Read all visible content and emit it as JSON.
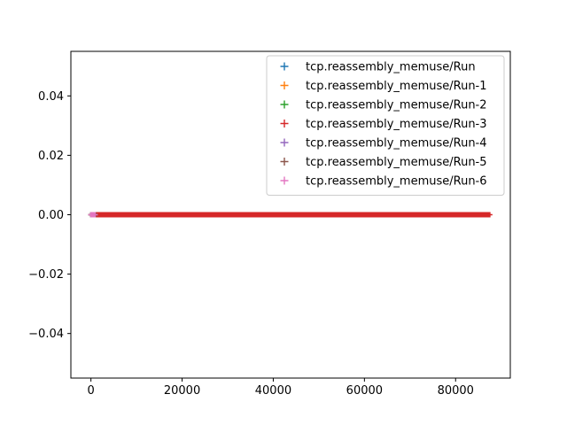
{
  "chart_data": {
    "type": "scatter",
    "title": "",
    "xlabel": "",
    "ylabel": "",
    "xlim": [
      -4400,
      92000
    ],
    "ylim": [
      -0.055,
      0.055
    ],
    "grid": false,
    "legend_position": "top-right",
    "marker": "+",
    "x_ticks": [
      0,
      20000,
      40000,
      60000,
      80000
    ],
    "x_tick_labels": [
      "0",
      "20000",
      "40000",
      "60000",
      "80000"
    ],
    "y_ticks": [
      -0.04,
      -0.02,
      0.0,
      0.02,
      0.04
    ],
    "y_tick_labels": [
      "−0.04",
      "−0.02",
      "0.00",
      "0.02",
      "0.04"
    ],
    "series": [
      {
        "name": "tcp.reassembly_memuse/Run",
        "color": "#1f77b4",
        "x_range": [
          0,
          1200
        ],
        "y": 0
      },
      {
        "name": "tcp.reassembly_memuse/Run-1",
        "color": "#ff7f0e",
        "x_range": [
          0,
          1200
        ],
        "y": 0
      },
      {
        "name": "tcp.reassembly_memuse/Run-2",
        "color": "#2ca02c",
        "x_range": [
          0,
          1200
        ],
        "y": 0
      },
      {
        "name": "tcp.reassembly_memuse/Run-3",
        "color": "#d62728",
        "x_range": [
          1200,
          87500
        ],
        "y": 0
      },
      {
        "name": "tcp.reassembly_memuse/Run-4",
        "color": "#9467bd",
        "x_range": [
          0,
          1000
        ],
        "y": 0
      },
      {
        "name": "tcp.reassembly_memuse/Run-5",
        "color": "#8c564b",
        "x_range": [
          0,
          1000
        ],
        "y": 0
      },
      {
        "name": "tcp.reassembly_memuse/Run-6",
        "color": "#e377c2",
        "x_range": [
          0,
          900
        ],
        "y": 0
      }
    ]
  }
}
